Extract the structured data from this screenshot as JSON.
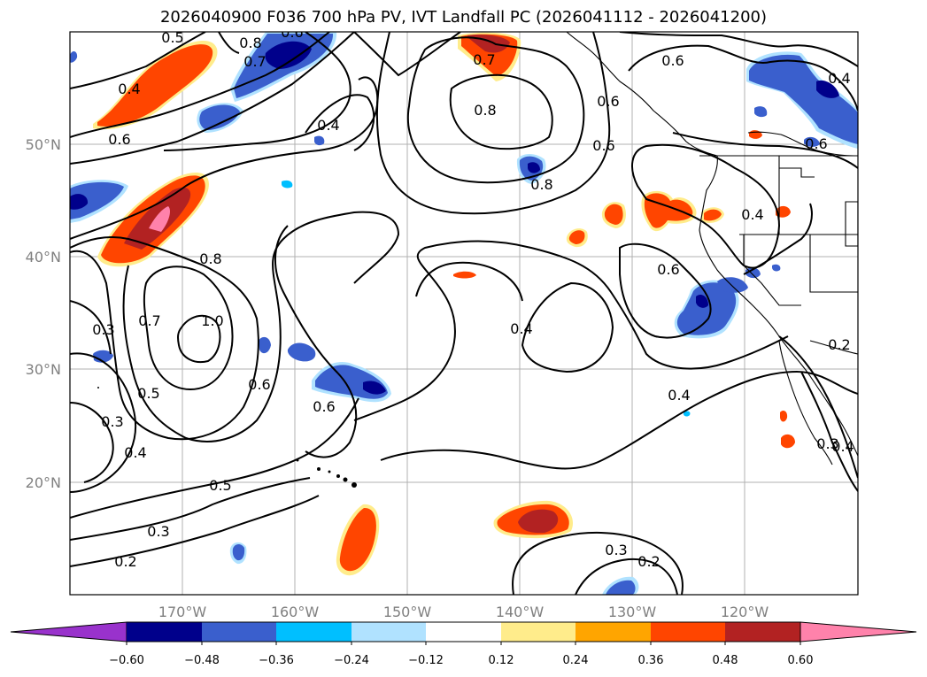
{
  "title": "2026040900 F036 700 hPa PV, IVT Landfall PC (2026041112 - 2026041200)",
  "lat_labels": [
    "50°N",
    "40°N",
    "30°N",
    "20°N"
  ],
  "lon_labels": [
    "170°W",
    "160°W",
    "150°W",
    "140°W",
    "130°W",
    "120°W"
  ],
  "colorbar": {
    "colors": [
      "#9932CC",
      "#00008B",
      "#3A5FCD",
      "#00BFFF",
      "#B0E2FF",
      "#FFFFFF",
      "#FFEC8B",
      "#FFA500",
      "#FF4500",
      "#B22222",
      "#FF82AB"
    ],
    "tick_labels": [
      "−0.60",
      "−0.48",
      "−0.36",
      "−0.24",
      "−0.12",
      "0.12",
      "0.24",
      "0.36",
      "0.48",
      "0.60"
    ]
  },
  "contour_labels": [
    "0.4",
    "0.6",
    "0.8",
    "0.7",
    "0.6",
    "0.5",
    "0.4",
    "0.7",
    "0.8",
    "0.6",
    "0.6",
    "0.8",
    "0.6",
    "0.4",
    "0.6",
    "0.4",
    "0.8",
    "1.0",
    "0.7",
    "0.5",
    "0.3",
    "0.3",
    "0.4",
    "0.5",
    "0.3",
    "0.2",
    "0.6",
    "0.6",
    "0.4",
    "0.6",
    "0.4",
    "0.3",
    "0.2",
    "0.3",
    "0.4",
    "0.2"
  ]
}
